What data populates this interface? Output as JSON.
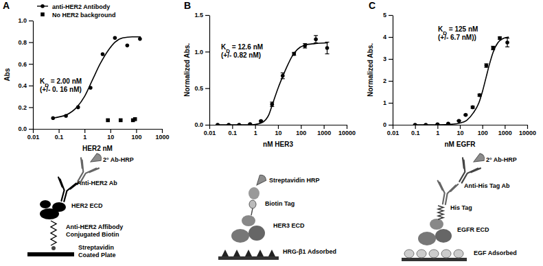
{
  "chart_data": [
    {
      "type": "scatter",
      "title": "A",
      "x_label": "HER2 nM",
      "y_label": "Abs",
      "log": "x",
      "legend": "top-left",
      "xlim": [
        0.01,
        1000
      ],
      "xticks": [
        0.01,
        0.1,
        1,
        10,
        100,
        1000
      ],
      "ylim": [
        0,
        1
      ],
      "yticks": [
        {
          "value": 0,
          "label": "0.0"
        },
        0.2,
        0.4,
        0.6,
        0.8,
        {
          "value": 1,
          "label": "1.0"
        }
      ],
      "series": [
        {
          "name": "anti-HER2 Antibody",
          "color": "#000000",
          "marker": "circle",
          "line_style": "solid",
          "x": [
            0.06,
            0.19,
            0.56,
            1.7,
            5,
            15,
            45,
            140
          ],
          "values": [
            0.1,
            0.12,
            0.2,
            0.38,
            0.69,
            0.84,
            0.77,
            0.83
          ],
          "fit": {
            "x": [
              0.06,
              0.1,
              0.2,
              0.5,
              1,
              2,
              4,
              8,
              15,
              30,
              70,
              150
            ],
            "values": [
              0.1,
              0.11,
              0.13,
              0.2,
              0.3,
              0.45,
              0.6,
              0.72,
              0.8,
              0.84,
              0.85,
              0.85
            ]
          }
        },
        {
          "name": "No HER2 background",
          "color": "#000000",
          "marker": "square",
          "line_style": "none",
          "x": [
            8,
            25,
            75,
            90
          ],
          "values": [
            0.08,
            0.08,
            0.08,
            0.09
          ]
        }
      ],
      "annotations": [
        "KD = 2.00 nM",
        "(+/- 0. 16 nM)"
      ],
      "diagram": [
        "2° Ab-HRP",
        "Anti-HER2 Ab",
        "HER2 ECD",
        "Anti-HER2 Affibody",
        "Conjugated Biotin",
        "Streptavidin",
        "Coated Plate"
      ]
    },
    {
      "type": "scatter",
      "title": "B",
      "x_label": "nM HER3",
      "y_label": "Normalized Abs.",
      "log": "x",
      "xlim": [
        0.01,
        10000
      ],
      "xticks": [
        0.01,
        0.1,
        1,
        10,
        100,
        1000,
        10000
      ],
      "ylim": [
        0,
        1.5
      ],
      "yticks": [
        {
          "value": 0,
          "label": "0.0"
        },
        0.5,
        {
          "value": 1,
          "label": "1.0"
        },
        1.5
      ],
      "series": [
        {
          "color": "#000000",
          "marker": "circle",
          "line_style": "solid",
          "x": [
            0.023,
            0.07,
            0.2,
            0.6,
            1.8,
            5.5,
            16,
            50,
            150,
            450,
            1400
          ],
          "values": [
            0,
            0,
            0,
            0.01,
            0.05,
            0.28,
            0.67,
            0.97,
            1.08,
            1.17,
            1.05
          ],
          "errors": [
            0,
            0,
            0,
            0,
            0.01,
            0.03,
            0.04,
            0.02,
            0.03,
            0.05,
            0.08
          ],
          "fit": {
            "x": [
              0.02,
              0.1,
              0.5,
              1,
              2,
              4,
              6,
              10,
              16,
              25,
              40,
              70,
              150,
              400,
              1500
            ],
            "values": [
              0,
              0,
              0,
              0.005,
              0.03,
              0.14,
              0.3,
              0.5,
              0.66,
              0.8,
              0.93,
              1.03,
              1.09,
              1.11,
              1.12
            ]
          }
        }
      ],
      "annotations": [
        "KD = 12.6 nM",
        "(+/- 0.82 nM)"
      ],
      "diagram": [
        "Streptavidin HRP",
        "Biotin Tag",
        "HER3 ECD",
        "HRG-β1 Adsorbed"
      ]
    },
    {
      "type": "scatter",
      "title": "C",
      "x_label": "nM EGFR",
      "y_label": "Normalized Abs.",
      "log": "x",
      "xlim": [
        0.01,
        10000
      ],
      "xticks": [
        0.01,
        0.1,
        1,
        10,
        100,
        1000,
        10000
      ],
      "ylim": [
        0,
        5
      ],
      "yticks": [
        0,
        1,
        2,
        3,
        4,
        5
      ],
      "series": [
        {
          "color": "#000000",
          "marker": "circle",
          "line_style": "solid",
          "x": [
            0.1,
            0.3,
            1,
            3,
            9,
            18,
            37,
            75,
            150,
            300,
            600,
            1300
          ],
          "values": [
            0,
            0,
            0.02,
            0.05,
            0.18,
            0.45,
            0.8,
            1.35,
            2.7,
            3.5,
            3.95,
            3.75
          ],
          "errors": [
            0,
            0,
            0,
            0,
            0.02,
            0.03,
            0.05,
            0.05,
            0.08,
            0.08,
            0.06,
            0.2
          ],
          "fit": {
            "x": [
              0.1,
              1,
              5,
              10,
              20,
              40,
              70,
              100,
              150,
              200,
              300,
              500,
              800,
              1500
            ],
            "values": [
              0,
              0,
              0.03,
              0.08,
              0.2,
              0.55,
              1.0,
              1.5,
              2.2,
              2.7,
              3.3,
              3.75,
              3.92,
              4.0
            ]
          }
        }
      ],
      "annotations": [
        "KD = 125 nM",
        "(+/- 6.7 nM))"
      ],
      "diagram": [
        "2° Ab-HRP",
        "Anti-His Tag Ab",
        "His Tag",
        "EGFR ECD",
        "EGF Adsorbed"
      ]
    }
  ]
}
